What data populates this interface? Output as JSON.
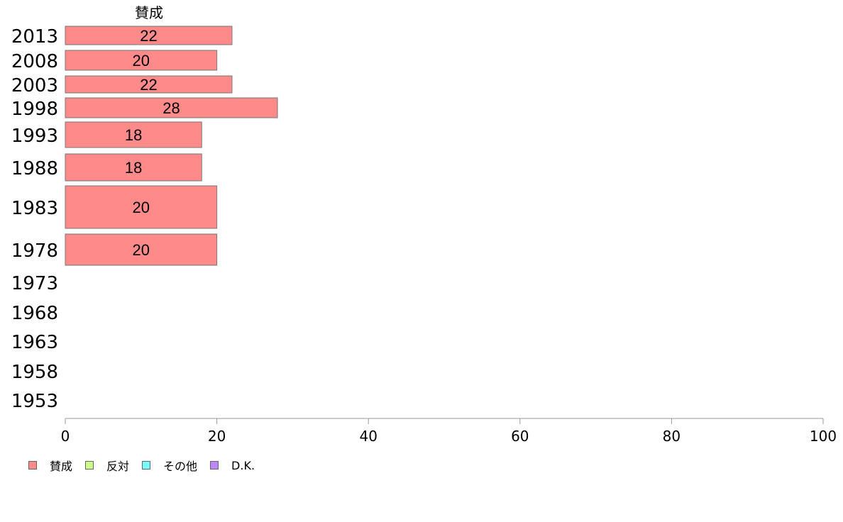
{
  "chart_data": {
    "type": "bar",
    "orientation": "horizontal",
    "stacked": true,
    "title": "賛成",
    "categories": [
      "2013",
      "2008",
      "2003",
      "1998",
      "1993",
      "1988",
      "1983",
      "1978",
      "1973",
      "1968",
      "1963",
      "1958",
      "1953"
    ],
    "series": [
      {
        "name": "賛成",
        "color": "#ff8a8a",
        "values": [
          22,
          20,
          22,
          28,
          18,
          18,
          20,
          20,
          null,
          null,
          null,
          null,
          null
        ]
      },
      {
        "name": "反対",
        "color": "#ccff88",
        "values": [
          null,
          null,
          null,
          null,
          null,
          null,
          null,
          null,
          null,
          null,
          null,
          null,
          null
        ]
      },
      {
        "name": "その他",
        "color": "#77ffff",
        "values": [
          null,
          null,
          null,
          null,
          null,
          null,
          null,
          null,
          null,
          null,
          null,
          null,
          null
        ]
      },
      {
        "name": "D.K.",
        "color": "#bb88ff",
        "values": [
          null,
          null,
          null,
          null,
          null,
          null,
          null,
          null,
          null,
          null,
          null,
          null,
          null
        ]
      }
    ],
    "xlim": [
      0,
      100
    ],
    "xticks": [
      "0",
      "20",
      "40",
      "60",
      "80",
      "100"
    ],
    "legend_position": "bottom-left",
    "grid": false
  }
}
